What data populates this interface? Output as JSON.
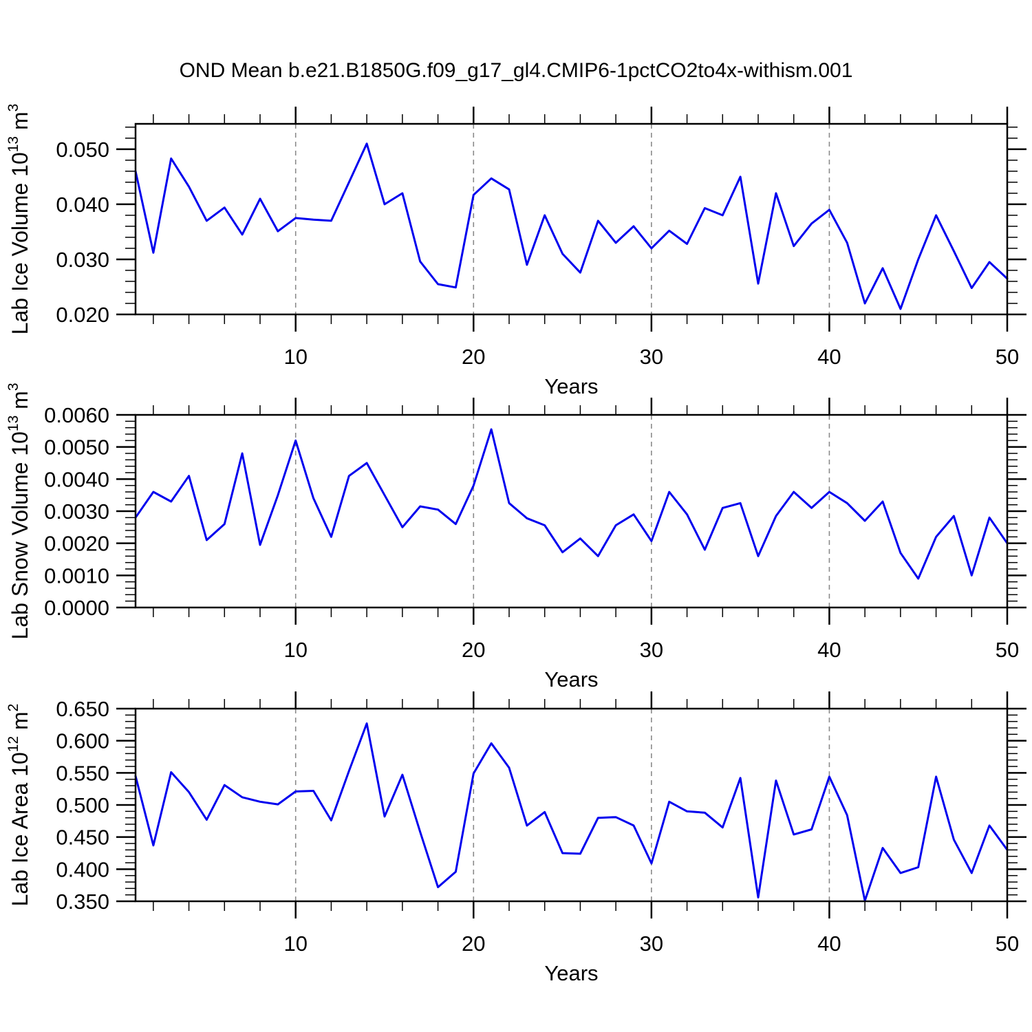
{
  "title": "OND Mean b.e21.B1850G.f09_g17_gl4.CMIP6-1pctCO2to4x-withism.001",
  "colors": {
    "line": "#0000ee",
    "grid": "#8a8a8a",
    "frame": "#000000",
    "background": "#ffffff"
  },
  "x_axis": {
    "label": "Years",
    "range": [
      1,
      50
    ],
    "major_ticks": [
      10,
      20,
      30,
      40,
      50
    ],
    "major_tick_labels": [
      "10",
      "20",
      "30",
      "40",
      "50"
    ],
    "minor_step": 2,
    "gridline_years": [
      10,
      20,
      30,
      40
    ]
  },
  "chart_data": [
    {
      "type": "line",
      "name": "lab-ice-volume",
      "ylabel": "Lab Ice Volume 10^13 m^3",
      "ylabel_segments": [
        {
          "t": "Lab Ice Volume 10"
        },
        {
          "t": "13",
          "sup": true
        },
        {
          "t": " m"
        },
        {
          "t": "3",
          "sup": true
        }
      ],
      "xlabel": "Years",
      "ylim": [
        0.02,
        0.0546
      ],
      "y_major_ticks": [
        0.02,
        0.03,
        0.04,
        0.05
      ],
      "y_tick_labels": [
        "0.020",
        "0.030",
        "0.040",
        "0.050"
      ],
      "y_minor_step": 0.002,
      "x_start_year": 1,
      "values": [
        0.046,
        0.0312,
        0.0483,
        0.0432,
        0.037,
        0.0394,
        0.0345,
        0.041,
        0.0351,
        0.0375,
        0.0372,
        0.037,
        0.044,
        0.051,
        0.04,
        0.042,
        0.0296,
        0.0255,
        0.0249,
        0.0417,
        0.0447,
        0.0427,
        0.029,
        0.038,
        0.031,
        0.0276,
        0.037,
        0.033,
        0.036,
        0.032,
        0.0352,
        0.0328,
        0.0393,
        0.038,
        0.045,
        0.0256,
        0.042,
        0.0324,
        0.0365,
        0.039,
        0.033,
        0.022,
        0.0284,
        0.021,
        0.03,
        0.038,
        0.0315,
        0.0248,
        0.0295,
        0.0265
      ]
    },
    {
      "type": "line",
      "name": "lab-snow-volume",
      "ylabel": "Lab Snow Volume 10^13 m^3",
      "ylabel_segments": [
        {
          "t": "Lab Snow Volume 10"
        },
        {
          "t": "13",
          "sup": true
        },
        {
          "t": " m"
        },
        {
          "t": "3",
          "sup": true
        }
      ],
      "xlabel": "Years",
      "ylim": [
        0.0,
        0.006
      ],
      "y_major_ticks": [
        0.0,
        0.001,
        0.002,
        0.003,
        0.004,
        0.005,
        0.006
      ],
      "y_tick_labels": [
        "0.0000",
        "0.0010",
        "0.0020",
        "0.0030",
        "0.0040",
        "0.0050",
        "0.0060"
      ],
      "y_minor_step": 0.0002,
      "x_start_year": 1,
      "values": [
        0.0028,
        0.0036,
        0.0033,
        0.0041,
        0.0021,
        0.0026,
        0.0048,
        0.00195,
        0.0035,
        0.0052,
        0.0034,
        0.0022,
        0.0041,
        0.0045,
        0.0035,
        0.0025,
        0.00315,
        0.00305,
        0.0026,
        0.0038,
        0.00555,
        0.00325,
        0.00278,
        0.00256,
        0.00172,
        0.00215,
        0.0016,
        0.00256,
        0.0029,
        0.00207,
        0.0036,
        0.0029,
        0.0018,
        0.0031,
        0.00325,
        0.0016,
        0.00285,
        0.0036,
        0.0031,
        0.0036,
        0.00325,
        0.0027,
        0.0033,
        0.0017,
        0.0009,
        0.0022,
        0.00285,
        0.001,
        0.0028,
        0.002
      ]
    },
    {
      "type": "line",
      "name": "lab-ice-area",
      "ylabel": "Lab Ice Area 10^12 m^2",
      "ylabel_segments": [
        {
          "t": "Lab Ice Area 10"
        },
        {
          "t": "12",
          "sup": true
        },
        {
          "t": " m"
        },
        {
          "t": "2",
          "sup": true
        }
      ],
      "xlabel": "Years",
      "ylim": [
        0.35,
        0.65
      ],
      "y_major_ticks": [
        0.35,
        0.4,
        0.45,
        0.5,
        0.55,
        0.6,
        0.65
      ],
      "y_tick_labels": [
        "0.350",
        "0.400",
        "0.450",
        "0.500",
        "0.550",
        "0.600",
        "0.650"
      ],
      "y_minor_step": 0.01,
      "x_start_year": 1,
      "values": [
        0.545,
        0.437,
        0.551,
        0.52,
        0.477,
        0.531,
        0.512,
        0.505,
        0.501,
        0.521,
        0.522,
        0.476,
        0.553,
        0.627,
        0.482,
        0.547,
        0.458,
        0.372,
        0.396,
        0.549,
        0.596,
        0.558,
        0.468,
        0.489,
        0.425,
        0.424,
        0.48,
        0.481,
        0.468,
        0.409,
        0.505,
        0.49,
        0.488,
        0.465,
        0.542,
        0.356,
        0.538,
        0.454,
        0.462,
        0.544,
        0.484,
        0.351,
        0.433,
        0.394,
        0.403,
        0.544,
        0.446,
        0.394,
        0.468,
        0.43
      ]
    }
  ]
}
